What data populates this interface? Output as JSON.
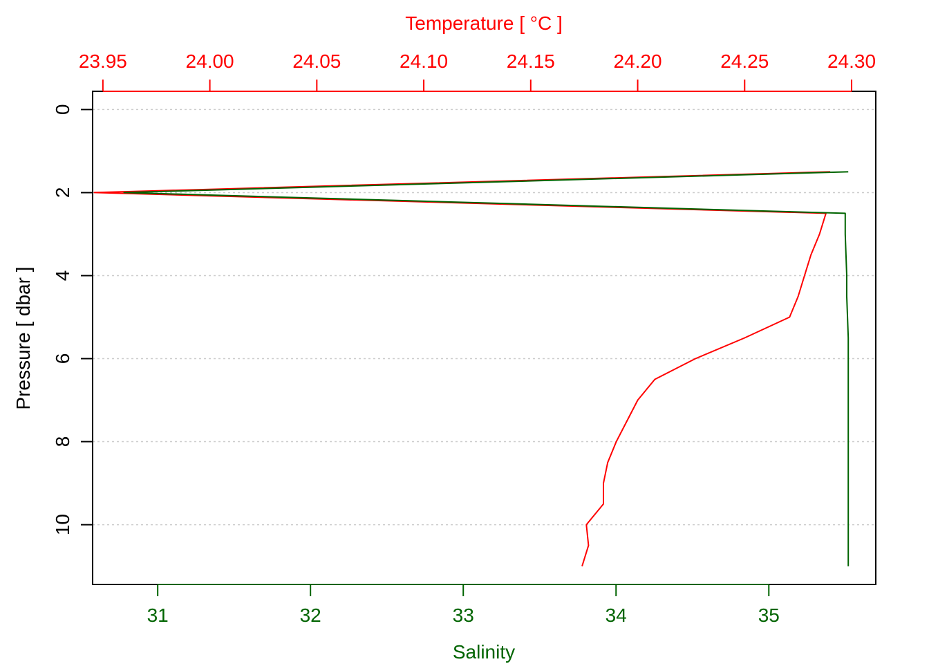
{
  "chart_data": {
    "type": "line",
    "top_axis": {
      "label": "Temperature [ °C ]",
      "color": "#FF0000",
      "ticks": [
        23.95,
        24.0,
        24.05,
        24.1,
        24.15,
        24.2,
        24.25,
        24.3
      ],
      "tick_labels": [
        "23.95",
        "24.00",
        "24.05",
        "24.10",
        "24.15",
        "24.20",
        "24.25",
        "24.30"
      ],
      "range": [
        23.9452,
        24.3113
      ]
    },
    "bottom_axis": {
      "label": "Salinity",
      "color": "#006400",
      "ticks": [
        31,
        32,
        33,
        34,
        35
      ],
      "tick_labels": [
        "31",
        "32",
        "33",
        "34",
        "35"
      ],
      "range": [
        30.574,
        35.7
      ]
    },
    "left_axis": {
      "label": "Pressure [ dbar ]",
      "color": "#000000",
      "ticks": [
        0,
        2,
        4,
        6,
        8,
        10
      ],
      "tick_labels": [
        "0",
        "2",
        "4",
        "6",
        "8",
        "10"
      ],
      "range": [
        -0.44,
        11.44
      ],
      "reversed": true
    },
    "grid": {
      "horizontal": true,
      "style": "dotted",
      "color": "#cccccc"
    },
    "series": [
      {
        "axis": "top",
        "color": "#FF0000",
        "points": [
          [
            24.29,
            1.5
          ],
          [
            23.946,
            2.0
          ],
          [
            24.288,
            2.5
          ],
          [
            24.285,
            3.0
          ],
          [
            24.281,
            3.5
          ],
          [
            24.278,
            4.0
          ],
          [
            24.275,
            4.5
          ],
          [
            24.271,
            5.0
          ],
          [
            24.25,
            5.5
          ],
          [
            24.227,
            6.0
          ],
          [
            24.208,
            6.5
          ],
          [
            24.2,
            7.0
          ],
          [
            24.195,
            7.5
          ],
          [
            24.19,
            8.0
          ],
          [
            24.186,
            8.5
          ],
          [
            24.184,
            9.0
          ],
          [
            24.184,
            9.5
          ],
          [
            24.176,
            10.0
          ],
          [
            24.177,
            10.5
          ],
          [
            24.174,
            11.0
          ]
        ]
      },
      {
        "axis": "bottom",
        "color": "#006400",
        "points": [
          [
            35.52,
            1.5
          ],
          [
            30.78,
            2.0
          ],
          [
            35.5,
            2.5
          ],
          [
            35.5,
            3.0
          ],
          [
            35.505,
            3.5
          ],
          [
            35.51,
            4.0
          ],
          [
            35.51,
            4.5
          ],
          [
            35.515,
            5.0
          ],
          [
            35.52,
            5.5
          ],
          [
            35.52,
            6.0
          ],
          [
            35.52,
            6.5
          ],
          [
            35.52,
            7.0
          ],
          [
            35.52,
            7.5
          ],
          [
            35.52,
            8.0
          ],
          [
            35.52,
            8.5
          ],
          [
            35.52,
            9.0
          ],
          [
            35.52,
            9.5
          ],
          [
            35.52,
            10.0
          ],
          [
            35.52,
            10.5
          ],
          [
            35.52,
            11.0
          ]
        ]
      }
    ]
  }
}
